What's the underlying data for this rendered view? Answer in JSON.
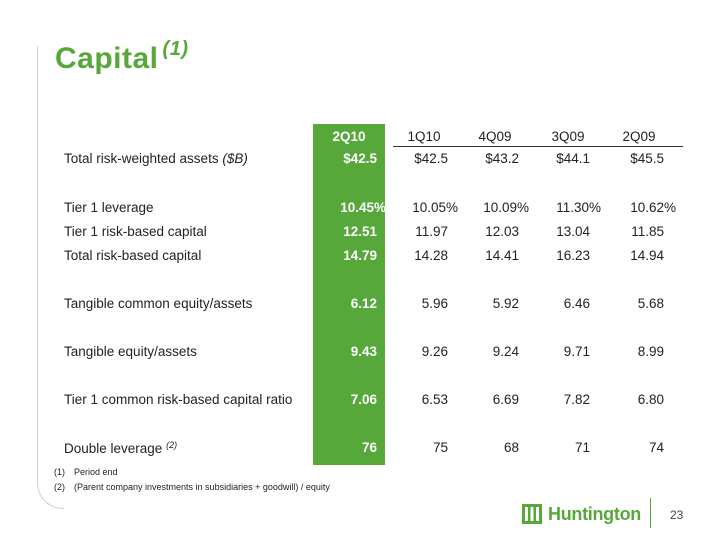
{
  "slide": {
    "title": "Capital",
    "title_footnote": "(1)",
    "page_number": "23"
  },
  "table": {
    "columns": [
      "2Q10",
      "1Q10",
      "4Q09",
      "3Q09",
      "2Q09"
    ],
    "rows": [
      {
        "label": "Total risk-weighted assets",
        "label_suffix": "($B)",
        "values": [
          "$42.5",
          "$42.5",
          "$43.2",
          "$44.1",
          "$45.5"
        ]
      },
      {
        "label": "Tier 1 leverage",
        "values": [
          "10.45%",
          "10.05%",
          "10.09%",
          "11.30%",
          "10.62%"
        ]
      },
      {
        "label": "Tier 1 risk-based capital",
        "values": [
          "12.51",
          "11.97",
          "12.03",
          "13.04",
          "11.85"
        ]
      },
      {
        "label": "Total risk-based capital",
        "values": [
          "14.79",
          "14.28",
          "14.41",
          "16.23",
          "14.94"
        ]
      },
      {
        "label": "Tangible common equity/assets",
        "values": [
          "6.12",
          "5.96",
          "5.92",
          "6.46",
          "5.68"
        ]
      },
      {
        "label": "Tangible equity/assets",
        "values": [
          "9.43",
          "9.26",
          "9.24",
          "9.71",
          "8.99"
        ]
      },
      {
        "label": "Tier 1 common risk-based capital ratio",
        "values": [
          "7.06",
          "6.53",
          "6.69",
          "7.82",
          "6.80"
        ]
      },
      {
        "label": "Double leverage",
        "label_footnote": "(2)",
        "values": [
          "76",
          "75",
          "68",
          "71",
          "74"
        ]
      }
    ]
  },
  "footnotes": [
    {
      "num": "(1)",
      "text": "Period end"
    },
    {
      "num": "(2)",
      "text": "(Parent company investments in subsidiaries + goodwill) / equity"
    }
  ],
  "logo": {
    "text": "Huntington",
    "icon": "huntington-logo-icon"
  },
  "colors": {
    "brand_green": "#56a83a",
    "text": "#222222"
  }
}
